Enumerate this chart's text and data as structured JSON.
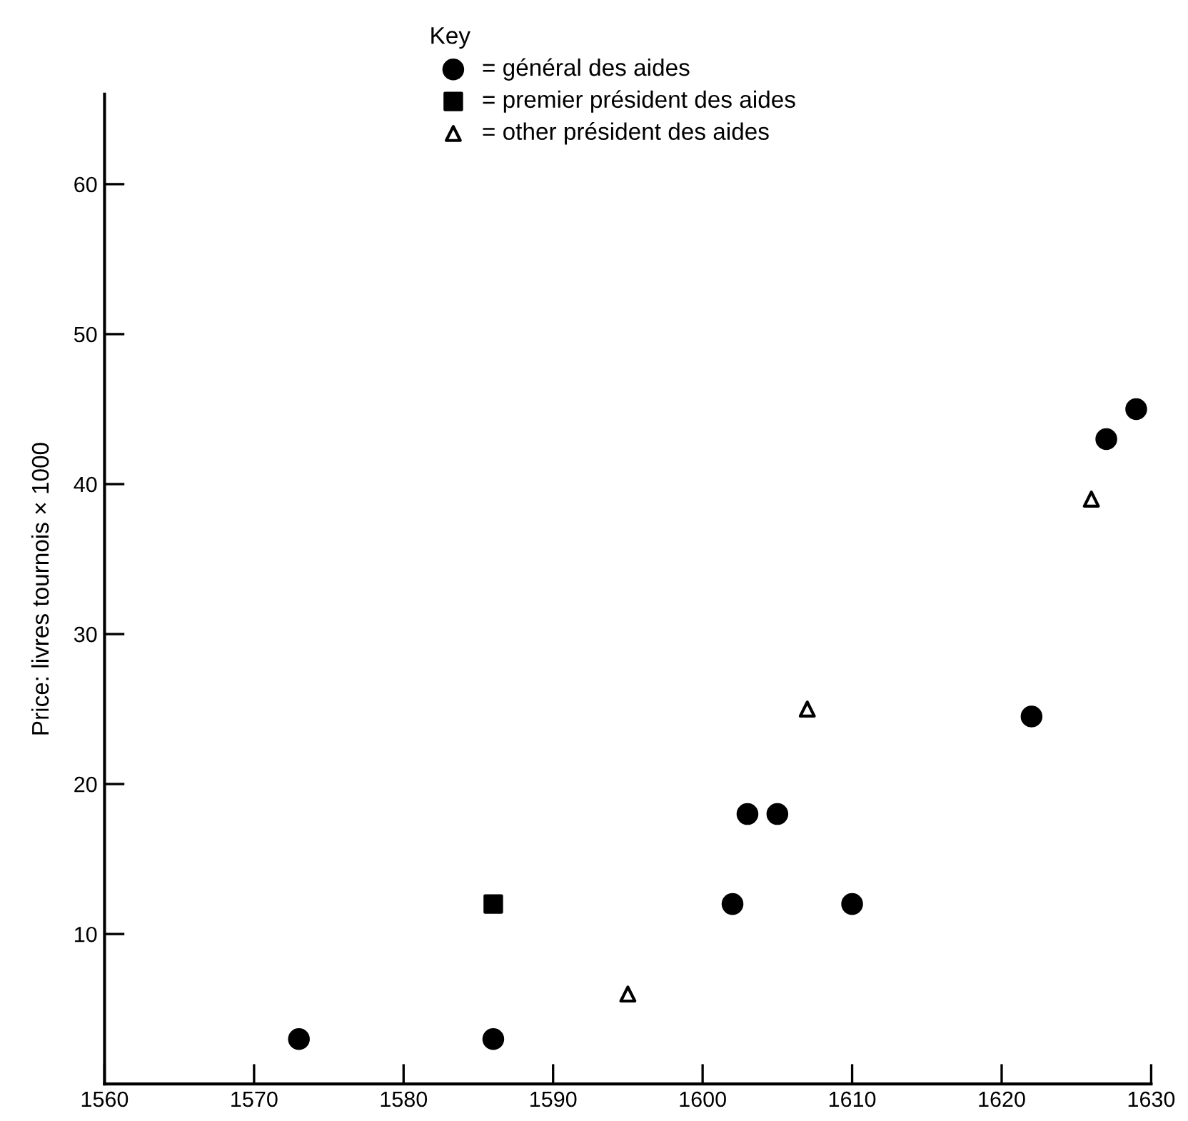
{
  "chart_data": {
    "type": "scatter",
    "ylabel": "Price: livres tournois × 1000",
    "legend_title": "Key",
    "legend": "top",
    "xlim": [
      1560,
      1630
    ],
    "xticks": [
      1560,
      1570,
      1580,
      1590,
      1600,
      1610,
      1620,
      1630
    ],
    "ylim": [
      0,
      66
    ],
    "yticks": [
      10,
      20,
      30,
      40,
      50,
      60
    ],
    "grid": false,
    "series": [
      {
        "name": "= général des aides",
        "color": "#000000",
        "marker": "circle",
        "x": [
          1573,
          1586,
          1602,
          1603,
          1605,
          1610,
          1622,
          1627,
          1629
        ],
        "values": [
          3,
          3,
          12,
          18,
          18,
          12,
          24.5,
          43,
          45
        ]
      },
      {
        "name": "= premier président des aides",
        "color": "#000000",
        "marker": "square",
        "x": [
          1586
        ],
        "values": [
          12
        ]
      },
      {
        "name": "= other président des aides",
        "color": "#000000",
        "marker": "triangle",
        "x": [
          1595,
          1607,
          1626
        ],
        "values": [
          6,
          25,
          39
        ]
      }
    ]
  }
}
